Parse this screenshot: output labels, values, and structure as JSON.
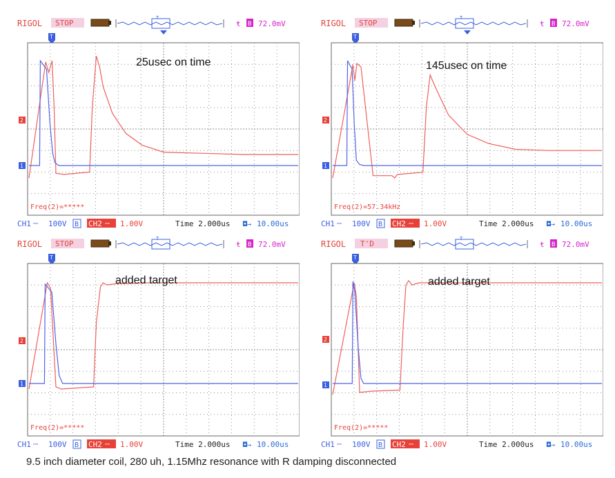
{
  "caption": "9.5 inch diameter coil, 280 uh, 1.15Mhz resonance with R damping disconnected",
  "colors": {
    "brand": "#e0453e",
    "status": "#e0453e",
    "trigger_voltage": "#d426c8",
    "ch1": "#3a5fe0",
    "ch2": "#e8413a",
    "trace_ch1": "#4f63e8",
    "trace_ch2": "#ee5f5a",
    "timebase_value": "#2f6bd6",
    "grid": "#8c8c8c"
  },
  "scopes": [
    {
      "brand": "RIGOL",
      "status": "STOP",
      "trigger_level": "72.0mV",
      "annotation": "25usec on time",
      "frequency": "Freq(2)=*****",
      "ch1": "CH1",
      "ch1_scale": "100V",
      "ch1_bw": "B",
      "ch2": "CH2",
      "ch2_scale": "1.00V",
      "time": "Time 2.000us",
      "offset": "10.00us",
      "trace_ch1": [
        [
          0.0,
          0.98
        ],
        [
          0.42,
          0.98
        ],
        [
          0.65,
          0.92
        ],
        [
          0.78,
          0.4
        ],
        [
          0.88,
          0.12
        ],
        [
          0.96,
          0.03
        ],
        [
          1.1,
          0.0
        ],
        [
          1.25,
          0.0
        ],
        [
          1.7,
          0.0
        ],
        [
          4.5,
          0.0
        ],
        [
          10.0,
          0.0
        ]
      ],
      "trace_ch2": [
        [
          0.0,
          0.99
        ],
        [
          0.62,
          0.99
        ],
        [
          0.73,
          0.9
        ],
        [
          0.86,
          1.0
        ],
        [
          0.93,
          0.62
        ],
        [
          1.0,
          0.04
        ],
        [
          1.3,
          0.03
        ],
        [
          2.25,
          0.05
        ],
        [
          2.35,
          0.6
        ],
        [
          2.5,
          1.04
        ],
        [
          2.62,
          0.95
        ],
        [
          2.75,
          0.78
        ],
        [
          3.1,
          0.55
        ],
        [
          3.6,
          0.38
        ],
        [
          4.2,
          0.28
        ],
        [
          5.0,
          0.22
        ],
        [
          6.5,
          0.21
        ],
        [
          8.0,
          0.2
        ],
        [
          10.0,
          0.2
        ]
      ]
    },
    {
      "brand": "RIGOL",
      "status": "STOP",
      "trigger_level": "72.0mV",
      "annotation": "145usec on time",
      "frequency": "Freq(2)=57.34kHz",
      "ch1": "CH1",
      "ch1_scale": "100V",
      "ch1_bw": "B",
      "ch2": "CH2",
      "ch2_scale": "1.00V",
      "time": "Time 2.000us",
      "offset": "10.00us",
      "trace_ch1": [
        [
          0.0,
          0.98
        ],
        [
          0.55,
          0.98
        ],
        [
          0.72,
          0.92
        ],
        [
          0.8,
          0.4
        ],
        [
          0.88,
          0.05
        ],
        [
          1.0,
          0.01
        ],
        [
          1.15,
          0.0
        ],
        [
          1.3,
          0.0
        ],
        [
          1.6,
          0.0
        ],
        [
          1.75,
          0.0
        ],
        [
          10.0,
          0.0
        ]
      ],
      "trace_ch2": [
        [
          0.0,
          0.99
        ],
        [
          0.75,
          0.99
        ],
        [
          0.82,
          0.85
        ],
        [
          0.9,
          1.0
        ],
        [
          1.05,
          0.97
        ],
        [
          1.5,
          0.02
        ],
        [
          2.2,
          0.02
        ],
        [
          2.3,
          0.0
        ],
        [
          2.4,
          0.03
        ],
        [
          3.35,
          0.05
        ],
        [
          3.48,
          0.62
        ],
        [
          3.62,
          0.9
        ],
        [
          3.8,
          0.8
        ],
        [
          4.3,
          0.55
        ],
        [
          5.0,
          0.38
        ],
        [
          5.8,
          0.3
        ],
        [
          6.8,
          0.25
        ],
        [
          8.0,
          0.24
        ],
        [
          10.0,
          0.24
        ]
      ]
    },
    {
      "brand": "RIGOL",
      "status": "STOP",
      "trigger_level": "72.0mV",
      "annotation": "added target",
      "frequency": "Freq(2)=*****",
      "ch1": "CH1",
      "ch1_scale": "100V",
      "ch1_bw": "B",
      "ch2": "CH2",
      "ch2_scale": "1.00V",
      "time": "Time 2.000us",
      "offset": "10.00us",
      "trace_ch1": [
        [
          0.0,
          0.97
        ],
        [
          0.6,
          0.97
        ],
        [
          0.85,
          0.92
        ],
        [
          1.0,
          0.4
        ],
        [
          1.12,
          0.08
        ],
        [
          1.25,
          0.0
        ],
        [
          1.5,
          0.0
        ],
        [
          1.8,
          0.0
        ],
        [
          10.0,
          0.0
        ]
      ],
      "trace_ch2": [
        [
          0.0,
          1.0
        ],
        [
          0.68,
          1.0
        ],
        [
          0.8,
          0.95
        ],
        [
          1.0,
          0.02
        ],
        [
          1.2,
          0.0
        ],
        [
          2.4,
          0.02
        ],
        [
          2.5,
          0.62
        ],
        [
          2.65,
          0.96
        ],
        [
          2.75,
          1.0
        ],
        [
          2.9,
          0.98
        ],
        [
          3.2,
          0.99
        ],
        [
          4.5,
          1.0
        ],
        [
          6.0,
          1.0
        ],
        [
          10.0,
          1.0
        ]
      ]
    },
    {
      "brand": "RIGOL",
      "status": "T'D",
      "trigger_level": "72.0mV",
      "annotation": "added target",
      "frequency": "Freq(2)=*****",
      "ch1": "CH1",
      "ch1_scale": "100V",
      "ch1_bw": "B",
      "ch2": "CH2",
      "ch2_scale": "1.00V",
      "time": "Time 2.000us",
      "offset": "10.00us",
      "trace_ch1": [
        [
          0.0,
          0.98
        ],
        [
          0.75,
          0.98
        ],
        [
          0.82,
          0.9
        ],
        [
          0.95,
          0.35
        ],
        [
          1.05,
          0.05
        ],
        [
          1.15,
          0.0
        ],
        [
          1.35,
          0.0
        ],
        [
          1.6,
          0.0
        ],
        [
          10.0,
          0.0
        ]
      ],
      "trace_ch2": [
        [
          0.0,
          1.0
        ],
        [
          0.8,
          1.0
        ],
        [
          0.88,
          0.88
        ],
        [
          1.0,
          0.02
        ],
        [
          1.45,
          0.03
        ],
        [
          2.5,
          0.04
        ],
        [
          2.62,
          0.62
        ],
        [
          2.72,
          0.98
        ],
        [
          2.82,
          1.02
        ],
        [
          2.95,
          0.98
        ],
        [
          3.2,
          1.0
        ],
        [
          4.5,
          1.0
        ],
        [
          6.0,
          1.0
        ],
        [
          10.0,
          1.0
        ]
      ]
    }
  ]
}
